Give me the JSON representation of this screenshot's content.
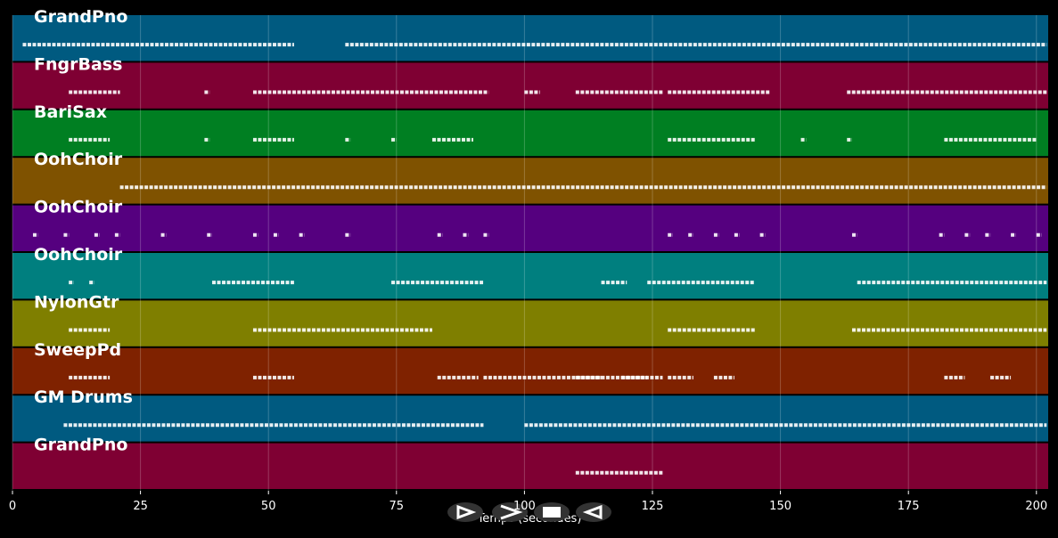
{
  "chart_data": {
    "type": "tracks",
    "x_label": "Temps (secondes)",
    "xlim": [
      0,
      202.3
    ],
    "xticks": [
      0,
      25,
      50,
      75,
      100,
      125,
      150,
      175,
      200
    ],
    "grid": true,
    "series": [
      {
        "name": "GrandPno",
        "color": "#005a80",
        "spans": [
          [
            2,
            55
          ],
          [
            65,
            202
          ]
        ]
      },
      {
        "name": "FngrBass",
        "color": "#7f0033",
        "spans": [
          [
            11,
            21
          ],
          [
            37.5,
            38.5
          ],
          [
            47,
            93
          ],
          [
            100,
            103
          ],
          [
            110,
            127
          ],
          [
            128,
            148
          ],
          [
            163,
            202
          ]
        ]
      },
      {
        "name": "BariSax",
        "color": "#007f22",
        "spans": [
          [
            11,
            19
          ],
          [
            37.5,
            38.5
          ],
          [
            47,
            55
          ],
          [
            65,
            66
          ],
          [
            74,
            75
          ],
          [
            82,
            90
          ],
          [
            128,
            145
          ],
          [
            154,
            155
          ],
          [
            163,
            164
          ],
          [
            182,
            200
          ]
        ]
      },
      {
        "name": "OohChoir",
        "color": "#7f5200",
        "spans": [
          [
            21,
            202
          ]
        ]
      },
      {
        "name": "OohChoir",
        "color": "#55007f",
        "spans": [
          [
            4,
            5
          ],
          [
            10,
            11
          ],
          [
            16,
            17
          ],
          [
            20,
            21
          ],
          [
            29,
            30
          ],
          [
            38,
            39
          ],
          [
            47,
            48
          ],
          [
            51,
            52
          ],
          [
            56,
            57
          ],
          [
            65,
            66
          ],
          [
            83,
            84
          ],
          [
            88,
            89
          ],
          [
            92,
            93
          ],
          [
            128,
            129
          ],
          [
            132,
            133
          ],
          [
            137,
            138
          ],
          [
            141,
            142
          ],
          [
            146,
            147
          ],
          [
            164,
            165
          ],
          [
            181,
            182
          ],
          [
            186,
            187
          ],
          [
            190,
            191
          ],
          [
            195,
            196
          ],
          [
            200,
            201
          ]
        ]
      },
      {
        "name": "OohChoir",
        "color": "#007f7f",
        "spans": [
          [
            11,
            12
          ],
          [
            15,
            16
          ],
          [
            39,
            55
          ],
          [
            74,
            92
          ],
          [
            115,
            120
          ],
          [
            124,
            145
          ],
          [
            165,
            202
          ]
        ]
      },
      {
        "name": "NylonGtr",
        "color": "#7f7f00",
        "spans": [
          [
            11,
            19
          ],
          [
            47,
            82
          ],
          [
            128,
            145
          ],
          [
            164,
            202
          ]
        ]
      },
      {
        "name": "SweepPd",
        "color": "#7f2200",
        "spans": [
          [
            11,
            19
          ],
          [
            47,
            55
          ],
          [
            83,
            91
          ],
          [
            92,
            127
          ],
          [
            110,
            115
          ],
          [
            119,
            124
          ],
          [
            128,
            133
          ],
          [
            137,
            141
          ],
          [
            182,
            186
          ],
          [
            191,
            195
          ]
        ]
      },
      {
        "name": "GM Drums",
        "color": "#005a80",
        "spans": [
          [
            10,
            92
          ],
          [
            100,
            202
          ]
        ]
      },
      {
        "name": "GrandPno",
        "color": "#7f0033",
        "spans": [
          [
            110,
            127
          ]
        ]
      }
    ]
  }
}
